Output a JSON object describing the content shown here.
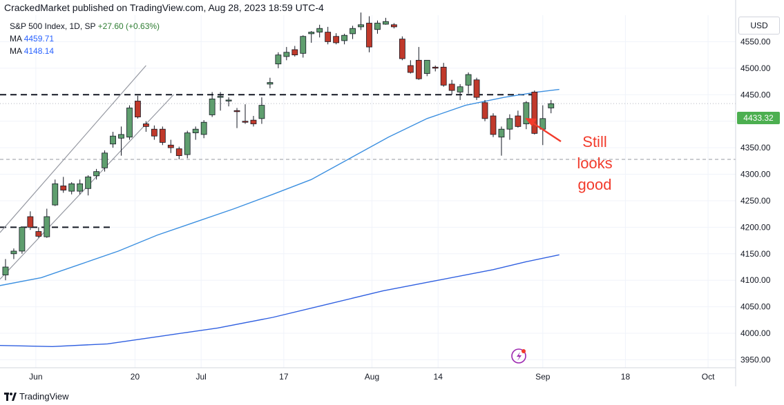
{
  "header": {
    "published_line": "CrackedMarket published on TradingView.com, Aug 28, 2023 18:59 UTC-4"
  },
  "legend": {
    "symbol_line": "S&P 500 Index, 1D, SP",
    "change": "+27.60 (+0.63%)",
    "ma1_label": "MA",
    "ma1_value": "4459.71",
    "ma2_label": "MA",
    "ma2_value": "4148.14"
  },
  "currency_button": "USD",
  "last_price_tag": "4433.32",
  "annotation": [
    "Still",
    "looks",
    "good"
  ],
  "footer": {
    "brand": "TradingView"
  },
  "colors": {
    "up": "#5f9e6e",
    "down": "#c0392b",
    "ma_fast": "#3b8fe0",
    "ma_slow": "#2f5fe0",
    "annotation": "#f23b2c",
    "price_tag": "#4caf50"
  },
  "chart_data": {
    "type": "candlestick",
    "y_axis_ticks": [
      3950,
      4000,
      4050,
      4100,
      4150,
      4200,
      4250,
      4300,
      4350,
      4400,
      4450,
      4500,
      4550
    ],
    "y_axis_labels": [
      "3950.00",
      "4000.00",
      "4050.00",
      "4100.00",
      "4150.00",
      "4200.00",
      "4250.00",
      "4300.00",
      "4350.00",
      "4400.00",
      "4450.00",
      "4500.00",
      "4550.00"
    ],
    "ylim": [
      3935,
      4600
    ],
    "x_axis_labels": [
      {
        "label": "Jun",
        "day": 2
      },
      {
        "label": "20",
        "day": 20
      },
      {
        "label": "Jul",
        "day": 32
      },
      {
        "label": "17",
        "day": 47
      },
      {
        "label": "Aug",
        "day": 63
      },
      {
        "label": "14",
        "day": 75
      },
      {
        "label": "Sep",
        "day": 94
      },
      {
        "label": "18",
        "day": 109
      },
      {
        "label": "Oct",
        "day": 124
      }
    ],
    "xlim": [
      -4.5,
      129
    ],
    "candles": [
      {
        "day": -3.5,
        "o": 4110,
        "h": 4140,
        "l": 4100,
        "c": 4125
      },
      {
        "day": -2,
        "o": 4150,
        "h": 4160,
        "l": 4140,
        "c": 4155
      },
      {
        "day": -0.5,
        "o": 4155,
        "h": 4200,
        "l": 4150,
        "c": 4200
      },
      {
        "day": 1,
        "o": 4220,
        "h": 4230,
        "l": 4195,
        "c": 4200
      },
      {
        "day": 2.5,
        "o": 4192,
        "h": 4200,
        "l": 4180,
        "c": 4183
      },
      {
        "day": 4,
        "o": 4182,
        "h": 4235,
        "l": 4180,
        "c": 4220
      },
      {
        "day": 5.5,
        "o": 4242,
        "h": 4290,
        "l": 4240,
        "c": 4282
      },
      {
        "day": 7,
        "o": 4278,
        "h": 4295,
        "l": 4265,
        "c": 4270
      },
      {
        "day": 8.5,
        "o": 4268,
        "h": 4285,
        "l": 4262,
        "c": 4282
      },
      {
        "day": 10,
        "o": 4268,
        "h": 4290,
        "l": 4262,
        "c": 4282
      },
      {
        "day": 11.5,
        "o": 4273,
        "h": 4298,
        "l": 4260,
        "c": 4295
      },
      {
        "day": 13,
        "o": 4297,
        "h": 4310,
        "l": 4290,
        "c": 4305
      },
      {
        "day": 14.5,
        "o": 4312,
        "h": 4345,
        "l": 4305,
        "c": 4340
      },
      {
        "day": 16,
        "o": 4357,
        "h": 4380,
        "l": 4350,
        "c": 4372
      },
      {
        "day": 17.5,
        "o": 4368,
        "h": 4390,
        "l": 4335,
        "c": 4375
      },
      {
        "day": 19,
        "o": 4370,
        "h": 4430,
        "l": 4365,
        "c": 4425
      },
      {
        "day": 20.5,
        "o": 4438,
        "h": 4448,
        "l": 4405,
        "c": 4408
      },
      {
        "day": 22,
        "o": 4395,
        "h": 4400,
        "l": 4380,
        "c": 4390
      },
      {
        "day": 23.5,
        "o": 4385,
        "h": 4392,
        "l": 4365,
        "c": 4372
      },
      {
        "day": 25,
        "o": 4385,
        "h": 4390,
        "l": 4355,
        "c": 4360
      },
      {
        "day": 26.5,
        "o": 4355,
        "h": 4365,
        "l": 4340,
        "c": 4350
      },
      {
        "day": 28,
        "o": 4348,
        "h": 4352,
        "l": 4328,
        "c": 4335
      },
      {
        "day": 29.5,
        "o": 4337,
        "h": 4382,
        "l": 4330,
        "c": 4378
      },
      {
        "day": 31,
        "o": 4378,
        "h": 4390,
        "l": 4365,
        "c": 4385
      },
      {
        "day": 32.5,
        "o": 4375,
        "h": 4402,
        "l": 4368,
        "c": 4398
      },
      {
        "day": 34,
        "o": 4412,
        "h": 4455,
        "l": 4408,
        "c": 4442
      },
      {
        "day": 35.5,
        "o": 4445,
        "h": 4455,
        "l": 4420,
        "c": 4447
      },
      {
        "day": 37,
        "o": 4440,
        "h": 4445,
        "l": 4428,
        "c": 4440
      },
      {
        "day": 38.5,
        "o": 4420,
        "h": 4425,
        "l": 4387,
        "c": 4418
      },
      {
        "day": 40,
        "o": 4400,
        "h": 4432,
        "l": 4395,
        "c": 4398
      },
      {
        "day": 41.5,
        "o": 4402,
        "h": 4410,
        "l": 4390,
        "c": 4395
      },
      {
        "day": 43,
        "o": 4405,
        "h": 4445,
        "l": 4395,
        "c": 4430
      },
      {
        "day": 44.5,
        "o": 4470,
        "h": 4482,
        "l": 4462,
        "c": 4473
      },
      {
        "day": 46,
        "o": 4508,
        "h": 4530,
        "l": 4500,
        "c": 4525
      },
      {
        "day": 47.5,
        "o": 4522,
        "h": 4540,
        "l": 4515,
        "c": 4530
      },
      {
        "day": 49,
        "o": 4535,
        "h": 4542,
        "l": 4522,
        "c": 4525
      },
      {
        "day": 50.5,
        "o": 4528,
        "h": 4562,
        "l": 4520,
        "c": 4560
      },
      {
        "day": 52,
        "o": 4565,
        "h": 4570,
        "l": 4548,
        "c": 4568
      },
      {
        "day": 53.5,
        "o": 4568,
        "h": 4582,
        "l": 4558,
        "c": 4575
      },
      {
        "day": 55,
        "o": 4568,
        "h": 4578,
        "l": 4545,
        "c": 4550
      },
      {
        "day": 56.5,
        "o": 4560,
        "h": 4566,
        "l": 4545,
        "c": 4548
      },
      {
        "day": 58,
        "o": 4552,
        "h": 4565,
        "l": 4545,
        "c": 4562
      },
      {
        "day": 59.5,
        "o": 4565,
        "h": 4580,
        "l": 4555,
        "c": 4575
      },
      {
        "day": 61,
        "o": 4578,
        "h": 4605,
        "l": 4572,
        "c": 4582
      },
      {
        "day": 62.5,
        "o": 4585,
        "h": 4598,
        "l": 4530,
        "c": 4540
      },
      {
        "day": 64,
        "o": 4573,
        "h": 4590,
        "l": 4565,
        "c": 4585
      },
      {
        "day": 65.5,
        "o": 4583,
        "h": 4595,
        "l": 4582,
        "c": 4588
      },
      {
        "day": 67,
        "o": 4582,
        "h": 4585,
        "l": 4575,
        "c": 4578
      },
      {
        "day": 68.5,
        "o": 4555,
        "h": 4560,
        "l": 4515,
        "c": 4518
      },
      {
        "day": 70,
        "o": 4505,
        "h": 4515,
        "l": 4490,
        "c": 4492
      },
      {
        "day": 71.5,
        "o": 4515,
        "h": 4540,
        "l": 4478,
        "c": 4480
      },
      {
        "day": 73,
        "o": 4490,
        "h": 4510,
        "l": 4485,
        "c": 4515
      },
      {
        "day": 74.5,
        "o": 4502,
        "h": 4505,
        "l": 4494,
        "c": 4500
      },
      {
        "day": 76,
        "o": 4502,
        "h": 4510,
        "l": 4465,
        "c": 4468
      },
      {
        "day": 77.5,
        "o": 4470,
        "h": 4478,
        "l": 4450,
        "c": 4458
      },
      {
        "day": 79,
        "o": 4455,
        "h": 4470,
        "l": 4440,
        "c": 4465
      },
      {
        "day": 80.5,
        "o": 4468,
        "h": 4492,
        "l": 4452,
        "c": 4488
      },
      {
        "day": 82,
        "o": 4478,
        "h": 4482,
        "l": 4440,
        "c": 4445
      },
      {
        "day": 83.5,
        "o": 4435,
        "h": 4440,
        "l": 4400,
        "c": 4405
      },
      {
        "day": 85,
        "o": 4410,
        "h": 4415,
        "l": 4370,
        "c": 4375
      },
      {
        "day": 86.5,
        "o": 4370,
        "h": 4390,
        "l": 4335,
        "c": 4385
      },
      {
        "day": 88,
        "o": 4385,
        "h": 4413,
        "l": 4365,
        "c": 4405
      },
      {
        "day": 89.5,
        "o": 4410,
        "h": 4420,
        "l": 4388,
        "c": 4390
      },
      {
        "day": 91,
        "o": 4395,
        "h": 4438,
        "l": 4385,
        "c": 4435
      },
      {
        "day": 92.5,
        "o": 4455,
        "h": 4458,
        "l": 4375,
        "c": 4377
      },
      {
        "day": 94,
        "o": 4385,
        "h": 4430,
        "l": 4355,
        "c": 4405
      },
      {
        "day": 95.5,
        "o": 4425,
        "h": 4440,
        "l": 4415,
        "c": 4433
      }
    ],
    "ma_fast_points": [
      [
        -4.5,
        4090
      ],
      [
        3,
        4105
      ],
      [
        10,
        4130
      ],
      [
        17,
        4155
      ],
      [
        24,
        4185
      ],
      [
        31,
        4210
      ],
      [
        38,
        4235
      ],
      [
        45,
        4262
      ],
      [
        52,
        4290
      ],
      [
        59,
        4330
      ],
      [
        66,
        4370
      ],
      [
        73,
        4405
      ],
      [
        80,
        4430
      ],
      [
        87,
        4445
      ],
      [
        93,
        4455
      ],
      [
        97,
        4460
      ]
    ],
    "ma_slow_points": [
      [
        -4.5,
        3977
      ],
      [
        5,
        3975
      ],
      [
        15,
        3980
      ],
      [
        25,
        3995
      ],
      [
        35,
        4010
      ],
      [
        45,
        4030
      ],
      [
        55,
        4055
      ],
      [
        65,
        4080
      ],
      [
        75,
        4100
      ],
      [
        85,
        4120
      ],
      [
        91,
        4135
      ],
      [
        97,
        4148
      ]
    ],
    "trend_channel": [
      {
        "from": [
          -4.5,
          4190
        ],
        "to": [
          22,
          4505
        ]
      },
      {
        "from": [
          -4.5,
          4102
        ],
        "to": [
          27,
          4450
        ]
      }
    ],
    "horizontal_lines": [
      {
        "style": "dashed-heavy",
        "y": 4450,
        "from_day": -4.5,
        "to_day": 93
      },
      {
        "style": "dashed-heavy",
        "y": 4200,
        "from_day": -4.5,
        "to_day": 16
      },
      {
        "style": "dashed-light",
        "y": 4328,
        "from_day": -4.5,
        "to_day": 129
      },
      {
        "style": "dotted-light",
        "y": 4433.32,
        "from_day": -4.5,
        "to_day": 129
      }
    ],
    "grid": true
  }
}
